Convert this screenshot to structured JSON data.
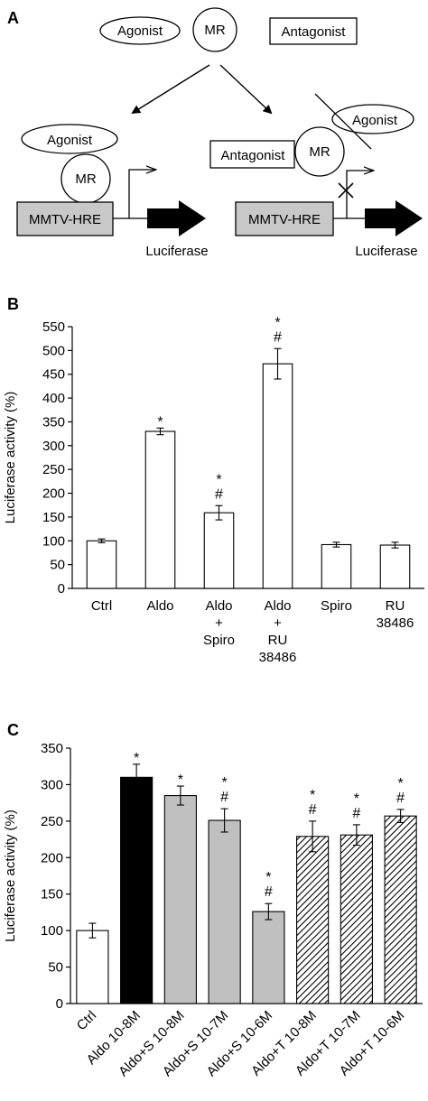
{
  "panels": {
    "a": "A",
    "b": "B",
    "c": "C"
  },
  "diagram": {
    "agonist": "Agonist",
    "antagonist": "Antagonist",
    "mr": "MR",
    "promoter": "MMTV-HRE",
    "reporter": "Luciferase"
  },
  "chart_data": [
    {
      "type": "bar",
      "panel": "B",
      "ylabel": "Luciferase activity (%)",
      "xlabel": "",
      "ylim": [
        0,
        550
      ],
      "ytick_step": 50,
      "grid": false,
      "categories": [
        [
          "Ctrl"
        ],
        [
          "Aldo"
        ],
        [
          "Aldo",
          "+",
          "Spiro"
        ],
        [
          "Aldo",
          "+",
          "RU",
          "38486"
        ],
        [
          "Spiro"
        ],
        [
          "RU",
          "38486"
        ]
      ],
      "values": [
        100,
        330,
        159,
        472,
        92,
        91
      ],
      "errors": [
        4,
        7,
        15,
        32,
        5,
        6
      ],
      "annotations": [
        [],
        [
          "*"
        ],
        [
          "*",
          "#"
        ],
        [
          "*",
          "#"
        ],
        [],
        []
      ],
      "fills": [
        "#ffffff",
        "#ffffff",
        "#ffffff",
        "#ffffff",
        "#ffffff",
        "#ffffff"
      ]
    },
    {
      "type": "bar",
      "panel": "C",
      "ylabel": "Luciferase activity (%)",
      "xlabel": "",
      "ylim": [
        0,
        350
      ],
      "ytick_step": 50,
      "grid": false,
      "categories": [
        "Ctrl",
        "Aldo 10-8M",
        "Aldo+S 10-8M",
        "Aldo+S 10-7M",
        "Aldo+S 10-6M",
        "Aldo+T 10-8M",
        "Aldo+T 10-7M",
        "Aldo+T 10-6M"
      ],
      "values": [
        100,
        310,
        285,
        251,
        126,
        229,
        231,
        257
      ],
      "errors": [
        10,
        18,
        13,
        16,
        11,
        21,
        14,
        9
      ],
      "annotations": [
        [],
        [
          "*"
        ],
        [
          "*"
        ],
        [
          "*",
          "#"
        ],
        [
          "*",
          "#"
        ],
        [
          "*",
          "#"
        ],
        [
          "*",
          "#"
        ],
        [
          "*",
          "#"
        ]
      ],
      "fills": [
        "white",
        "black",
        "gray",
        "gray",
        "gray",
        "hatch",
        "hatch",
        "hatch"
      ]
    }
  ]
}
